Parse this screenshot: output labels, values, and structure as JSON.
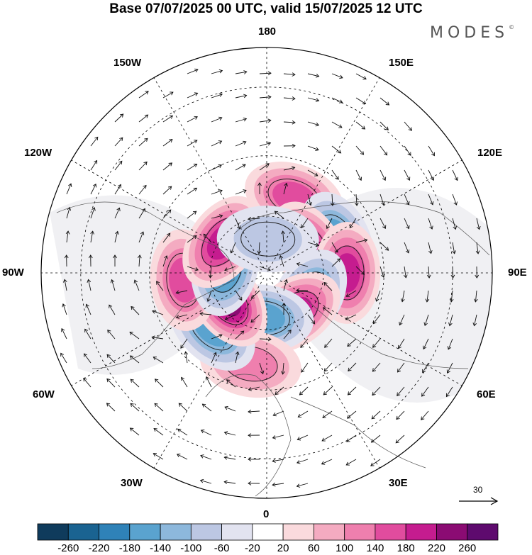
{
  "title": "Base 07/07/2025 00 UTC, valid 15/07/2025 12 UTC",
  "brand": "MODES",
  "brand_mark": "©",
  "longitude_labels": {
    "top": "180",
    "bottom": "0",
    "left": "90W",
    "right": "90E",
    "l150w": "150W",
    "l150e": "150E",
    "l120w": "120W",
    "l120e": "120E",
    "l60w": "60W",
    "l60e": "60E",
    "l30w": "30W",
    "l30e": "30E"
  },
  "vector_reference_label": "30",
  "colorbar": {
    "labels": [
      "-260",
      "-220",
      "-180",
      "-140",
      "-100",
      "-60",
      "-20",
      "20",
      "60",
      "100",
      "140",
      "180",
      "220",
      "260"
    ],
    "colors": [
      "#0f3b5c",
      "#1a6391",
      "#2f82b8",
      "#5aa3cf",
      "#8db8dc",
      "#bcc7e3",
      "#e2e3f0",
      "#ffffff",
      "#fadadd",
      "#f4abc1",
      "#ef7fae",
      "#e14c9e",
      "#c51c8f",
      "#8b0b73",
      "#5e0a6e"
    ]
  },
  "anomaly_centers": [
    {
      "lon_deg": 160,
      "lat": 62,
      "value": 150
    },
    {
      "lon_deg": 115,
      "lat": 63,
      "value": -160
    },
    {
      "lon_deg": 120,
      "lat": 73,
      "value": 200
    },
    {
      "lon_deg": 90,
      "lat": 62,
      "value": 180
    },
    {
      "lon_deg": 60,
      "lat": 73,
      "value": -170
    },
    {
      "lon_deg": 35,
      "lat": 73,
      "value": 190
    },
    {
      "lon_deg": -5,
      "lat": 74,
      "value": -160
    },
    {
      "lon_deg": -10,
      "lat": 58,
      "value": 130
    },
    {
      "lon_deg": -45,
      "lat": 63,
      "value": -170
    },
    {
      "lon_deg": -55,
      "lat": 73,
      "value": 240
    },
    {
      "lon_deg": -85,
      "lat": 61,
      "value": 140
    },
    {
      "lon_deg": -100,
      "lat": 75,
      "value": -180
    },
    {
      "lon_deg": -125,
      "lat": 71,
      "value": 210
    },
    {
      "lon_deg": 178,
      "lat": 78,
      "value": -90
    }
  ]
}
